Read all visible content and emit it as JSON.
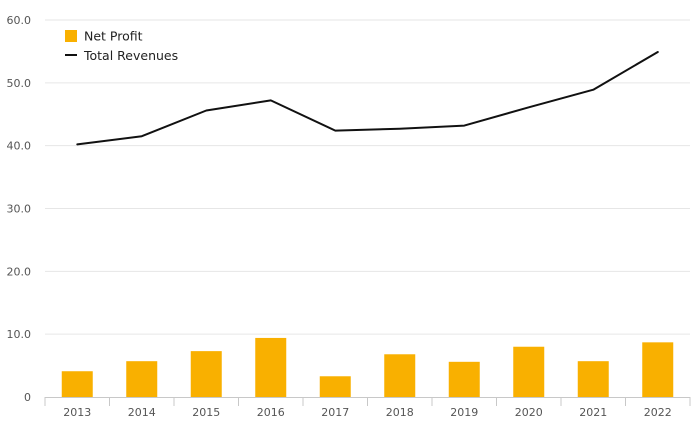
{
  "chart_data": {
    "type": "bar",
    "categories": [
      "2013",
      "2014",
      "2015",
      "2016",
      "2017",
      "2018",
      "2019",
      "2020",
      "2021",
      "2022"
    ],
    "series": [
      {
        "name": "Net Profit",
        "type": "bar",
        "color": "#f9b000",
        "values": [
          4.1,
          5.7,
          7.3,
          9.4,
          3.3,
          6.8,
          5.6,
          8.0,
          5.7,
          8.7
        ]
      },
      {
        "name": "Total Revenues",
        "type": "line",
        "color": "#111111",
        "values": [
          40.2,
          41.5,
          45.6,
          47.2,
          42.4,
          42.7,
          43.2,
          46.1,
          48.9,
          54.9
        ]
      }
    ],
    "ylim": [
      0,
      60
    ],
    "yticks": [
      "0",
      "10.0",
      "20.0",
      "30.0",
      "40.0",
      "50.0",
      "60.0"
    ],
    "ytick_values": [
      0,
      10,
      20,
      30,
      40,
      50,
      60
    ],
    "grid": true,
    "legend_position": "top-left",
    "title": "",
    "xlabel": "",
    "ylabel": ""
  }
}
